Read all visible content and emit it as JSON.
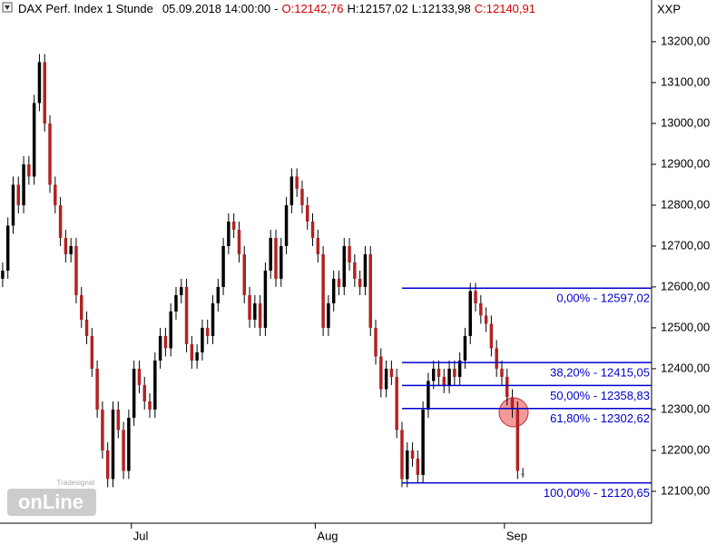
{
  "chart_data": {
    "type": "candlestick",
    "header": {
      "name": "DAX Perf. Index 1 Stunde",
      "datetime": "05.09.2018 14:00:00",
      "sep": "-",
      "open": "O:12142,76",
      "high": "H:12157,02",
      "low": "L:12133,98",
      "close": "C:12140,91"
    },
    "symbol": "XXP",
    "logo": {
      "small": "Tradesignal",
      "big": "onLine"
    },
    "up_color": "#000000",
    "down_color": "#b22222",
    "fib_color": "#0000cc",
    "open": [
      12620,
      12640,
      12750,
      12850,
      12800,
      12900,
      12870,
      13050,
      13150,
      13000,
      12850,
      12800,
      12720,
      12680,
      12700,
      12580,
      12520,
      12480,
      12400,
      12300,
      12200,
      12130,
      12300,
      12250,
      12150,
      12280,
      12400,
      12360,
      12320,
      12300,
      12420,
      12480,
      12450,
      12540,
      12580,
      12600,
      12460,
      12420,
      12440,
      12500,
      12480,
      12560,
      12600,
      12700,
      12760,
      12740,
      12680,
      12580,
      12520,
      12560,
      12500,
      12640,
      12720,
      12620,
      12700,
      12800,
      12870,
      12840,
      12800,
      12760,
      12720,
      12680,
      12500,
      12560,
      12620,
      12600,
      12700,
      12660,
      12620,
      12600,
      12680,
      12500,
      12430,
      12350,
      12400,
      12380,
      12250,
      12130,
      12200,
      12180,
      12140,
      12300,
      12370,
      12400,
      12380,
      12360,
      12400,
      12380,
      12420,
      12480,
      12590,
      12560,
      12530,
      12510,
      12450,
      12400,
      12380,
      12330,
      12300,
      12142.76
    ],
    "high": [
      12660,
      12770,
      12870,
      12870,
      12920,
      12920,
      13070,
      13170,
      13170,
      13020,
      12870,
      12820,
      12740,
      12720,
      12720,
      12600,
      12540,
      12500,
      12420,
      12320,
      12220,
      12320,
      12320,
      12270,
      12300,
      12420,
      12420,
      12380,
      12340,
      12440,
      12500,
      12500,
      12560,
      12600,
      12620,
      12620,
      12480,
      12460,
      12520,
      12520,
      12580,
      12620,
      12720,
      12780,
      12780,
      12760,
      12700,
      12600,
      12580,
      12580,
      12660,
      12740,
      12740,
      12720,
      12820,
      12890,
      12890,
      12860,
      12820,
      12780,
      12740,
      12700,
      12580,
      12640,
      12640,
      12720,
      12720,
      12680,
      12640,
      12700,
      12700,
      12520,
      12450,
      12420,
      12420,
      12400,
      12270,
      12220,
      12220,
      12200,
      12320,
      12390,
      12420,
      12420,
      12400,
      12420,
      12420,
      12440,
      12500,
      12610,
      12610,
      12580,
      12550,
      12530,
      12470,
      12420,
      12400,
      12350,
      12320,
      12157.02
    ],
    "low": [
      12600,
      12620,
      12730,
      12780,
      12780,
      12850,
      12850,
      13030,
      12980,
      12830,
      12780,
      12700,
      12660,
      12660,
      12560,
      12500,
      12460,
      12380,
      12280,
      12180,
      12110,
      12110,
      12230,
      12130,
      12130,
      12260,
      12340,
      12300,
      12280,
      12280,
      12400,
      12430,
      12430,
      12520,
      12560,
      12440,
      12400,
      12400,
      12420,
      12460,
      12460,
      12540,
      12580,
      12680,
      12720,
      12660,
      12560,
      12500,
      12500,
      12480,
      12480,
      12620,
      12600,
      12600,
      12680,
      12780,
      12820,
      12780,
      12740,
      12700,
      12660,
      12480,
      12480,
      12540,
      12580,
      12580,
      12640,
      12600,
      12580,
      12580,
      12480,
      12410,
      12330,
      12330,
      12360,
      12230,
      12110,
      12110,
      12160,
      12120,
      12120,
      12280,
      12350,
      12360,
      12340,
      12340,
      12360,
      12360,
      12400,
      12460,
      12540,
      12510,
      12490,
      12430,
      12380,
      12360,
      12310,
      12280,
      12130,
      12133.98
    ],
    "close": [
      12640,
      12750,
      12850,
      12800,
      12900,
      12870,
      13050,
      13150,
      13000,
      12850,
      12800,
      12720,
      12680,
      12700,
      12580,
      12520,
      12480,
      12400,
      12300,
      12200,
      12130,
      12300,
      12250,
      12150,
      12280,
      12400,
      12360,
      12320,
      12300,
      12420,
      12480,
      12450,
      12540,
      12580,
      12600,
      12460,
      12420,
      12440,
      12500,
      12480,
      12560,
      12600,
      12700,
      12760,
      12740,
      12680,
      12580,
      12520,
      12560,
      12500,
      12640,
      12720,
      12620,
      12700,
      12800,
      12870,
      12840,
      12800,
      12760,
      12720,
      12680,
      12500,
      12560,
      12620,
      12600,
      12700,
      12660,
      12620,
      12600,
      12680,
      12500,
      12430,
      12350,
      12400,
      12380,
      12250,
      12130,
      12200,
      12180,
      12140,
      12300,
      12370,
      12400,
      12380,
      12360,
      12400,
      12380,
      12420,
      12480,
      12590,
      12560,
      12530,
      12510,
      12450,
      12400,
      12380,
      12330,
      12300,
      12150,
      12140.91
    ],
    "xlim": [
      0,
      124
    ],
    "xticks": [
      {
        "value": 25,
        "label": "Jul"
      },
      {
        "value": 60,
        "label": "Aug"
      },
      {
        "value": 96,
        "label": "Sep"
      }
    ],
    "ylim": [
      12022,
      13302
    ],
    "yticks": [
      {
        "value": 12100,
        "label": "12100,00"
      },
      {
        "value": 12200,
        "label": "12200,00"
      },
      {
        "value": 12300,
        "label": "12300,00"
      },
      {
        "value": 12400,
        "label": "12400,00"
      },
      {
        "value": 12500,
        "label": "12500,00"
      },
      {
        "value": 12600,
        "label": "12600,00"
      },
      {
        "value": 12700,
        "label": "12700,00"
      },
      {
        "value": 12800,
        "label": "12800,00"
      },
      {
        "value": 12900,
        "label": "12900,00"
      },
      {
        "value": 13000,
        "label": "13000,00"
      },
      {
        "value": 13100,
        "label": "13100,00"
      },
      {
        "value": 13200,
        "label": "13200,00"
      }
    ],
    "fibonacci": [
      {
        "value": 12597.02,
        "label": "0,00% - 12597,02"
      },
      {
        "value": 12415.05,
        "label": "38,20% - 12415,05"
      },
      {
        "value": 12358.83,
        "label": "50,00% - 12358,83"
      },
      {
        "value": 12302.62,
        "label": "61,80% - 12302,62"
      },
      {
        "value": 12120.65,
        "label": "100,00% - 12120,65"
      }
    ]
  }
}
